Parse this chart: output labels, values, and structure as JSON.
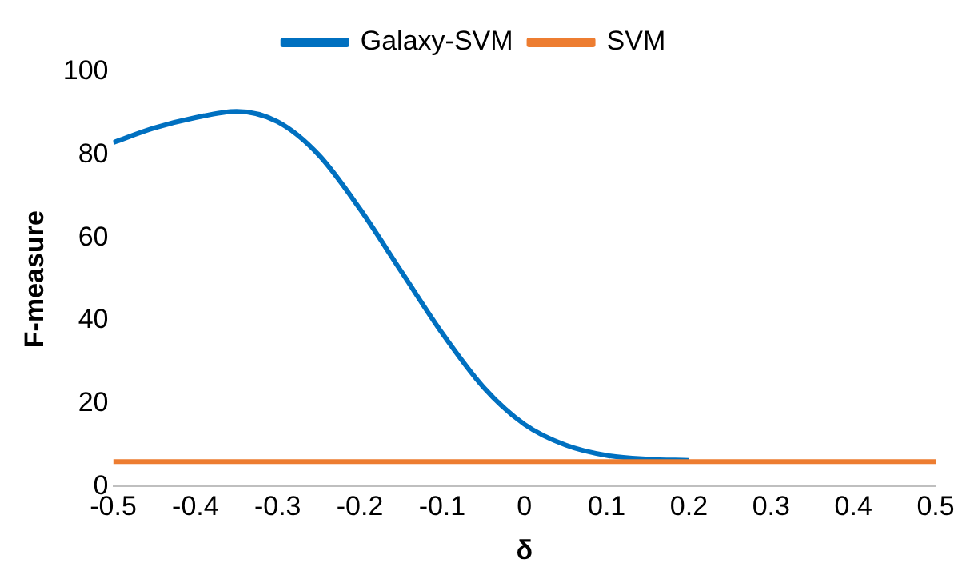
{
  "chart_data": {
    "type": "line",
    "xlabel": "δ",
    "ylabel": "F-measure",
    "xlim": [
      -0.5,
      0.5
    ],
    "xticks": [
      -0.5,
      -0.4,
      -0.3,
      -0.2,
      -0.1,
      0,
      0.1,
      0.2,
      0.3,
      0.4,
      0.5
    ],
    "ylim": [
      0,
      100
    ],
    "yticks": [
      0,
      20,
      40,
      60,
      80,
      100
    ],
    "x": [
      -0.5,
      -0.45,
      -0.4,
      -0.35,
      -0.3,
      -0.25,
      -0.2,
      -0.15,
      -0.1,
      -0.05,
      0,
      0.05,
      0.1,
      0.15,
      0.2,
      0.25,
      0.3,
      0.35,
      0.4,
      0.45,
      0.5
    ],
    "series": [
      {
        "name": "Galaxy-SVM",
        "color": "#0070c0",
        "values": [
          83,
          86.5,
          89,
          90.5,
          88,
          80,
          67,
          52,
          37,
          24,
          15,
          10,
          7.5,
          6.6,
          6.3,
          null,
          null,
          null,
          null,
          null,
          null
        ]
      },
      {
        "name": "SVM",
        "color": "#ed7d31",
        "values": [
          6,
          6,
          6,
          6,
          6,
          6,
          6,
          6,
          6,
          6,
          6,
          6,
          6,
          6,
          6,
          6,
          6,
          6,
          6,
          6,
          6
        ]
      }
    ],
    "grid": false,
    "legend": "top",
    "marker": "none",
    "line_style": "solid"
  }
}
